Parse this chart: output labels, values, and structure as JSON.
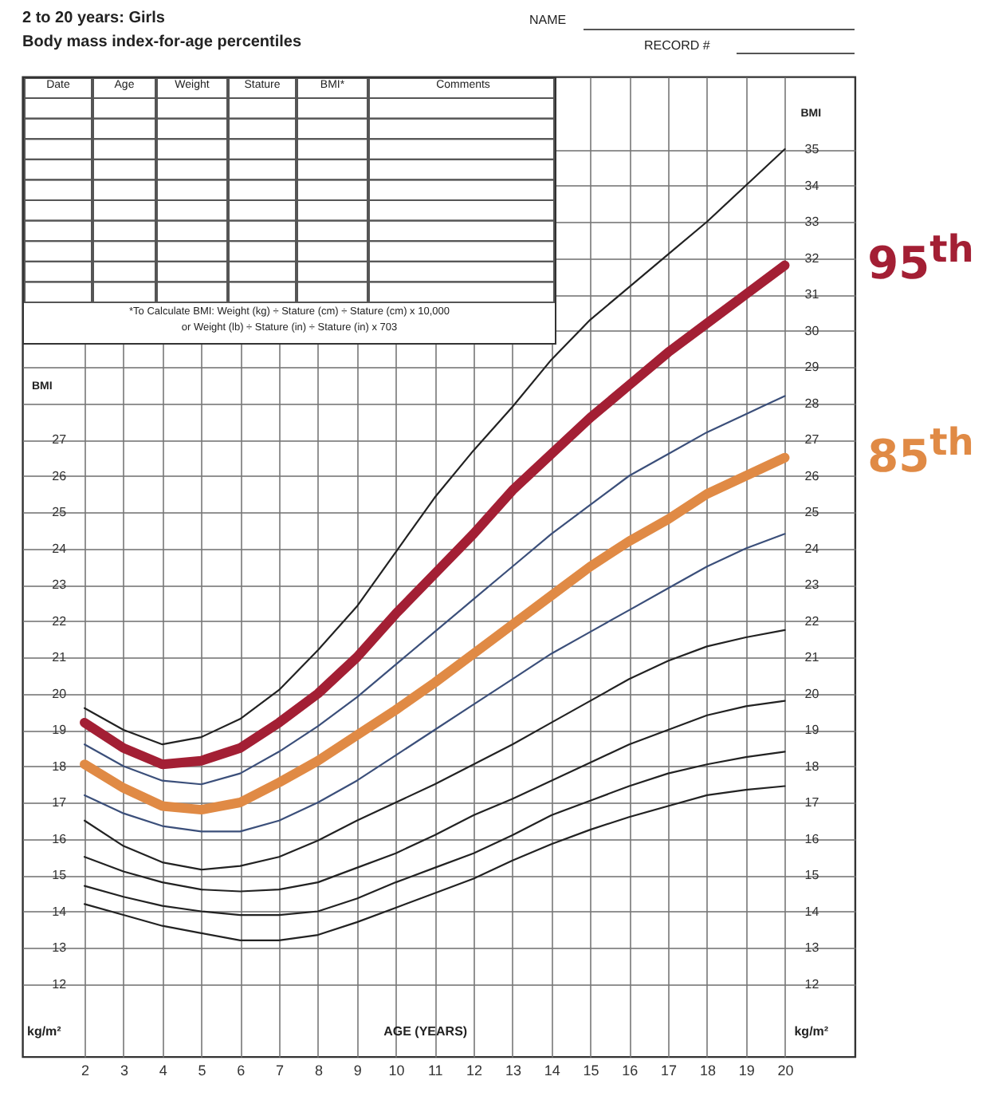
{
  "chart_data": {
    "type": "line",
    "title": "2 to 20 years: Girls",
    "subtitle": "Body mass index-for-age percentiles",
    "xlabel": "AGE (YEARS)",
    "ylabel": "BMI",
    "y2label": "BMI",
    "annotations": [
      "NAME",
      "RECORD #",
      "Date",
      "Age",
      "Weight",
      "Stature",
      "BMI*",
      "Comments",
      "*To Calculate BMI: Weight (kg) ÷ Stature (cm) ÷ Stature (cm) x 10,000",
      "or Weight (lb) ÷ Stature (in) ÷ Stature (in) x 703",
      "kg/m²",
      "kg/m²"
    ],
    "x": [
      2,
      3,
      4,
      5,
      6,
      7,
      8,
      9,
      10,
      11,
      12,
      13,
      14,
      15,
      16,
      17,
      18,
      19,
      20
    ],
    "xlim": [
      0.4,
      21.8
    ],
    "xticks": [
      2,
      3,
      4,
      5,
      6,
      7,
      8,
      9,
      10,
      11,
      12,
      13,
      14,
      15,
      16,
      17,
      18,
      19,
      20
    ],
    "ylim": [
      10,
      37
    ],
    "yticks": [
      12,
      13,
      14,
      15,
      16,
      17,
      18,
      19,
      20,
      21,
      22,
      23,
      24,
      25,
      26,
      27
    ],
    "y2lim": [
      10,
      37
    ],
    "y2ticks": [
      12,
      13,
      14,
      15,
      16,
      17,
      18,
      19,
      20,
      21,
      22,
      23,
      24,
      25,
      26,
      27,
      28,
      29,
      30,
      31,
      32,
      33,
      34,
      35
    ],
    "grid": true,
    "series": [
      {
        "color": "#222222",
        "values": [
          14.2,
          13.9,
          13.6,
          13.4,
          13.2,
          13.2,
          13.35,
          13.7,
          14.1,
          14.5,
          14.9,
          15.4,
          15.85,
          16.25,
          16.6,
          16.9,
          17.2,
          17.35,
          17.45
        ]
      },
      {
        "color": "#222222",
        "values": [
          14.7,
          14.4,
          14.15,
          14.0,
          13.9,
          13.9,
          14.0,
          14.35,
          14.8,
          15.2,
          15.6,
          16.1,
          16.65,
          17.05,
          17.45,
          17.8,
          18.05,
          18.25,
          18.4
        ]
      },
      {
        "color": "#222222",
        "values": [
          15.5,
          15.1,
          14.8,
          14.6,
          14.55,
          14.6,
          14.8,
          15.2,
          15.6,
          16.1,
          16.65,
          17.1,
          17.6,
          18.1,
          18.6,
          19.0,
          19.4,
          19.65,
          19.8
        ]
      },
      {
        "color": "#222222",
        "values": [
          16.5,
          15.8,
          15.35,
          15.15,
          15.25,
          15.5,
          15.95,
          16.5,
          17.0,
          17.5,
          18.05,
          18.6,
          19.2,
          19.8,
          20.4,
          20.9,
          21.3,
          21.55,
          21.75
        ]
      },
      {
        "color": "#3b4f7a",
        "values": [
          17.2,
          16.7,
          16.35,
          16.2,
          16.2,
          16.5,
          17.0,
          17.6,
          18.3,
          19.0,
          19.7,
          20.4,
          21.1,
          21.7,
          22.3,
          22.9,
          23.5,
          24.0,
          24.4
        ]
      },
      {
        "color": "#3b4f7a",
        "values": [
          18.6,
          18.0,
          17.6,
          17.5,
          17.8,
          18.4,
          19.1,
          19.9,
          20.8,
          21.7,
          22.6,
          23.5,
          24.4,
          25.2,
          26.0,
          26.6,
          27.2,
          27.7,
          28.2
        ]
      },
      {
        "color": "#222222",
        "values": [
          19.6,
          19.0,
          18.6,
          18.8,
          19.3,
          20.1,
          21.2,
          22.4,
          23.9,
          25.4,
          26.7,
          27.9,
          29.2,
          30.3,
          31.2,
          32.1,
          33.0,
          34.0,
          35.0
        ]
      },
      {
        "name": "85$^{th}$",
        "color": "#e08a45",
        "values": [
          18.05,
          17.4,
          16.9,
          16.8,
          17.0,
          17.55,
          18.15,
          18.85,
          19.55,
          20.3,
          21.1,
          21.9,
          22.7,
          23.5,
          24.2,
          24.8,
          25.5,
          26.0,
          26.5
        ]
      },
      {
        "name": "95$^{th}$",
        "color": "#a31f34",
        "values": [
          19.2,
          18.5,
          18.05,
          18.15,
          18.5,
          19.2,
          20.0,
          21.0,
          22.2,
          23.3,
          24.4,
          25.6,
          26.6,
          27.6,
          28.5,
          29.4,
          30.2,
          31.0,
          31.8
        ]
      }
    ]
  }
}
